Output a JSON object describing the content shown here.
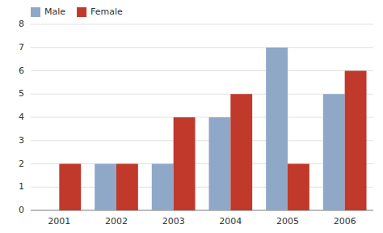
{
  "chart_data": {
    "type": "bar",
    "categories": [
      "2001",
      "2002",
      "2003",
      "2004",
      "2005",
      "2006"
    ],
    "series": [
      {
        "name": "Male",
        "color": "#8fa8c8",
        "values": [
          0,
          2,
          2,
          4,
          7,
          5
        ]
      },
      {
        "name": "Female",
        "color": "#c0392b",
        "values": [
          2,
          2,
          4,
          5,
          2,
          6
        ]
      }
    ],
    "ylim": [
      0,
      8
    ],
    "yticks": [
      0,
      1,
      2,
      3,
      4,
      5,
      6,
      7,
      8
    ],
    "grid": true,
    "legend": "upper left"
  }
}
